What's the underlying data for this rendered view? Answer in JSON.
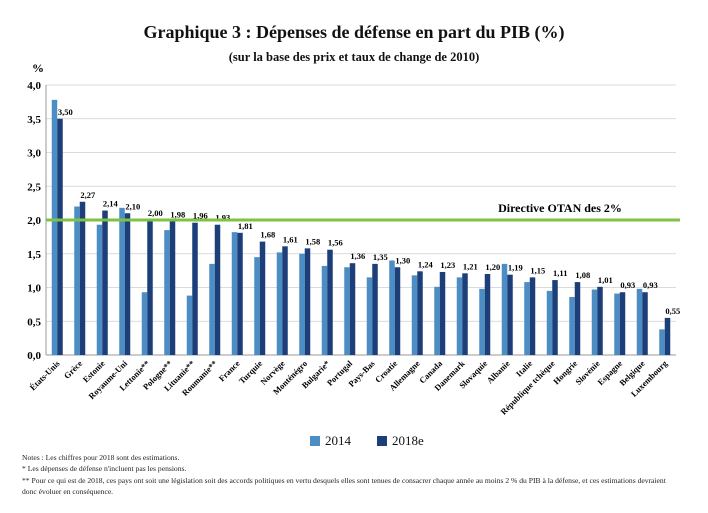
{
  "title": "Graphique 3 : Dépenses de défense en part du PIB (%)",
  "subtitle": "(sur la base des prix et taux de change de 2010)",
  "colors": {
    "s2014": "#4C8DC4",
    "s2018": "#1C3F7A",
    "target": "#7DC243",
    "grid": "#cfcfcf"
  },
  "chart_data": {
    "type": "bar",
    "ylabel": "%",
    "ylim": [
      0,
      4
    ],
    "yticks": [
      "0,0",
      "0,5",
      "1,0",
      "1,5",
      "2,0",
      "2,5",
      "3,0",
      "3,5",
      "4,0"
    ],
    "grid": true,
    "legend_position": "bottom",
    "categories": [
      "États-Unis",
      "Grèce",
      "Estonie",
      "Royaume-Uni",
      "Lettonie**",
      "Pologne**",
      "Lituanie**",
      "Roumanie**",
      "France",
      "Turquie",
      "Norvège",
      "Monténégro",
      "Bulgarie*",
      "Portugal",
      "Pays-Bas",
      "Croatie",
      "Allemagne",
      "Canada",
      "Danemark",
      "Slovaquie",
      "Albanie",
      "Italie",
      "République tchèque",
      "Hongrie",
      "Slovénie",
      "Espagne",
      "Belgique",
      "Luxembourg"
    ],
    "series": [
      {
        "name": "2014",
        "values": [
          3.78,
          2.2,
          1.93,
          2.18,
          0.93,
          1.85,
          0.88,
          1.35,
          1.82,
          1.45,
          1.52,
          1.5,
          1.32,
          1.3,
          1.15,
          1.4,
          1.18,
          1.01,
          1.15,
          0.98,
          1.35,
          1.08,
          0.95,
          0.86,
          0.97,
          0.91,
          0.98,
          0.38
        ]
      },
      {
        "name": "2018e",
        "values": [
          3.5,
          2.27,
          2.14,
          2.1,
          2.0,
          1.98,
          1.96,
          1.93,
          1.81,
          1.68,
          1.61,
          1.58,
          1.56,
          1.36,
          1.35,
          1.3,
          1.24,
          1.23,
          1.21,
          1.2,
          1.19,
          1.15,
          1.11,
          1.08,
          1.01,
          0.93,
          0.93,
          0.55
        ]
      }
    ],
    "data_labels": [
      "3,50",
      "2,27",
      "2,14",
      "2,10",
      "2,00",
      "1,98",
      "1,96",
      "1,93",
      "1,81",
      "1,68",
      "1,61",
      "1,58",
      "1,56",
      "1,36",
      "1,35",
      "1,30",
      "1,24",
      "1,23",
      "1,21",
      "1,20",
      "1,19",
      "1,15",
      "1,11",
      "1,08",
      "1,01",
      "0,93",
      "0,93",
      "0,55"
    ],
    "reference_line": {
      "value": 2.0,
      "label": "Directive OTAN des 2%"
    }
  },
  "notes": [
    "Notes : Les chiffres pour 2018 sont des estimations.",
    "* Les dépenses de défense n'incluent pas les pensions.",
    "**  Pour ce qui est de 2018, ces pays ont soit une législation soit des accords politiques en vertu desquels elles sont tenues de consacrer chaque année au moins 2 % du PIB à la défense, et ces estimations devraient donc évoluer en conséquence."
  ]
}
